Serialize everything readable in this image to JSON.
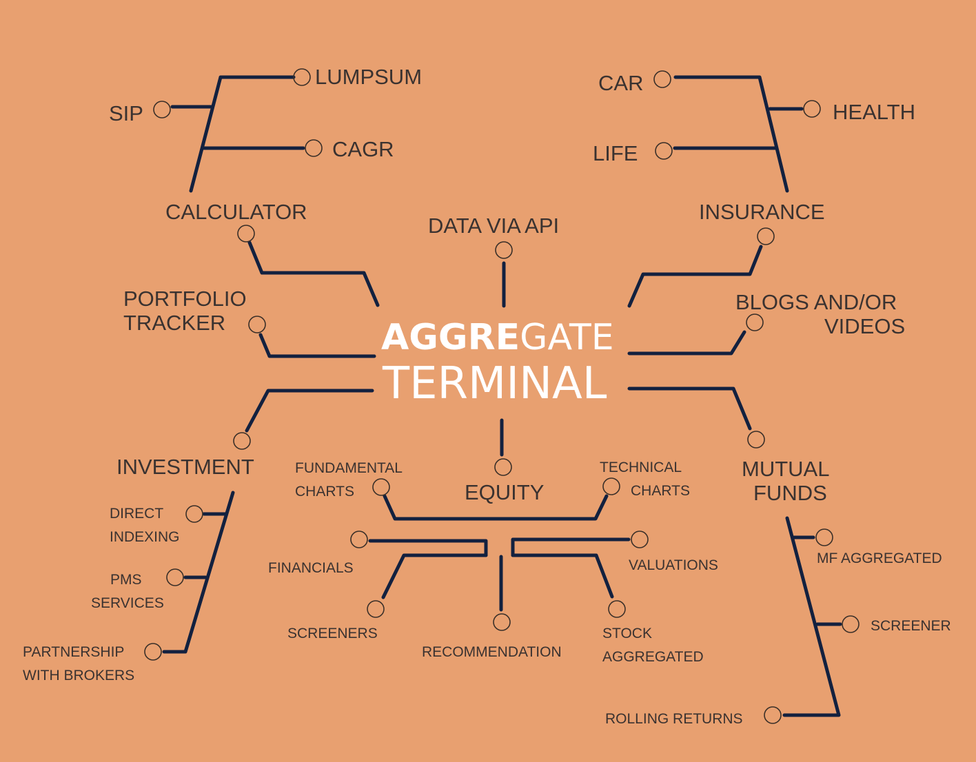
{
  "title": {
    "word1_bold": "AGGRE",
    "word1_light": "GATE",
    "word2": "TERMINAL",
    "color": "#ffffff"
  },
  "colors": {
    "background": "#E8A070",
    "line": "#13213F",
    "text": "#3a3230"
  },
  "branches": {
    "calculator": {
      "label": "CALCULATOR",
      "children": [
        "LUMPSUM",
        "SIP",
        "CAGR"
      ]
    },
    "data_via_api": {
      "label": "DATA VIA API"
    },
    "insurance": {
      "label": "INSURANCE",
      "children": [
        "CAR",
        "HEALTH",
        "LIFE"
      ]
    },
    "portfolio_tracker": {
      "label_line1": "PORTFOLIO",
      "label_line2": "TRACKER"
    },
    "blogs_videos": {
      "label_line1": "BLOGS AND/OR",
      "label_line2": "VIDEOS"
    },
    "investment": {
      "label": "INVESTMENT",
      "direct_indexing": [
        "DIRECT",
        "INDEXING"
      ],
      "pms_services": [
        "PMS",
        "SERVICES"
      ],
      "partnership": [
        "PARTNERSHIP",
        "WITH BROKERS"
      ]
    },
    "equity": {
      "label": "EQUITY",
      "fundamental_charts": [
        "FUNDAMENTAL",
        "CHARTS"
      ],
      "technical_charts": [
        "TECHNICAL",
        "CHARTS"
      ],
      "financials": "FINANCIALS",
      "valuations": "VALUATIONS",
      "screeners": "SCREENERS",
      "recommendation": "RECOMMENDATION",
      "stock_aggregated": [
        "STOCK",
        "AGGREGATED"
      ]
    },
    "mutual_funds": {
      "label_line1": "MUTUAL",
      "label_line2": "FUNDS",
      "children": [
        "MF AGGREGATED",
        "SCREENER",
        "ROLLING RETURNS"
      ]
    }
  }
}
